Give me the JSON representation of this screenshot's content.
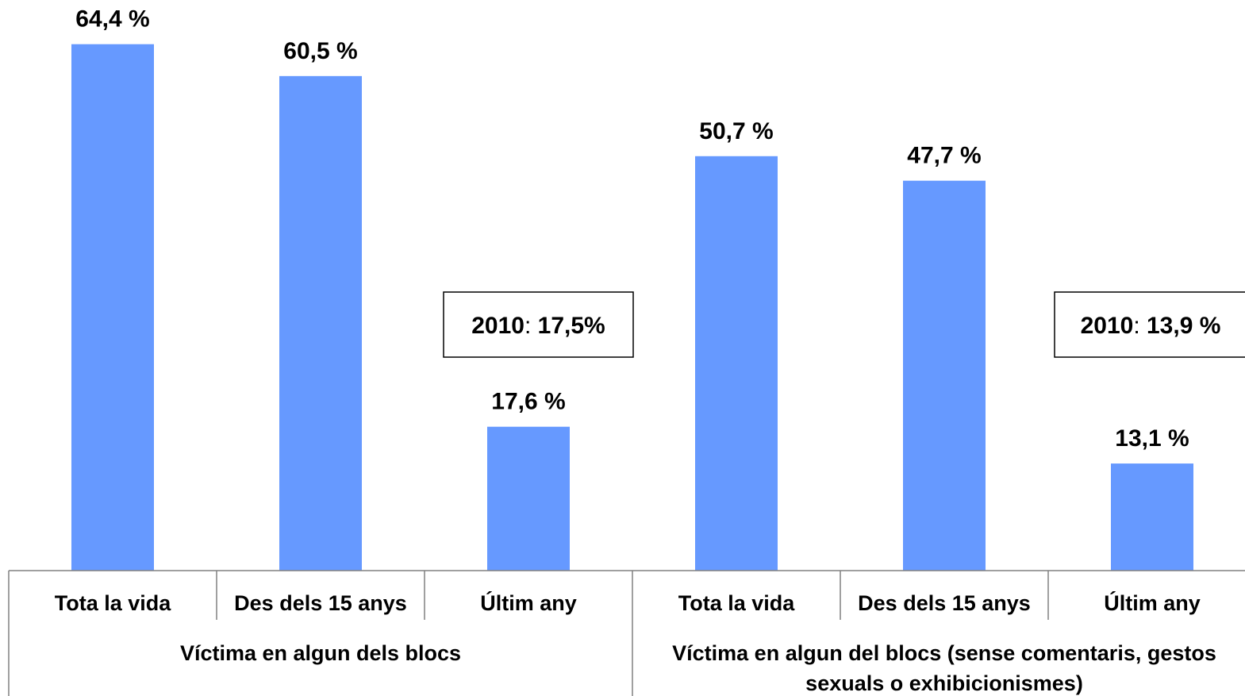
{
  "chart_data": {
    "type": "bar",
    "title": "",
    "xlabel": "",
    "ylabel": "",
    "ylim": [
      0,
      70
    ],
    "grid": false,
    "legend": "none",
    "bar_color": "#6699ff",
    "groups": [
      {
        "label": "Víctima en algun dels blocs",
        "label_lines": [
          "Víctima en algun dels blocs"
        ],
        "categories": [
          "Tota la vida",
          "Des dels 15 anys",
          "Últim any"
        ],
        "values": [
          64.4,
          60.5,
          17.6
        ],
        "value_labels": [
          "64,4 %",
          "60,5 %",
          "17,6 %"
        ],
        "note": {
          "year": "2010",
          "sep": ": ",
          "value": "17,5%"
        }
      },
      {
        "label": "Víctima en algun del blocs (sense comentaris, gestos sexuals o exhibicionismes)",
        "label_lines": [
          "Víctima en algun del blocs (sense comentaris, gestos",
          "sexuals o exhibicionismes)"
        ],
        "categories": [
          "Tota la vida",
          "Des dels 15 anys",
          "Últim any"
        ],
        "values": [
          50.7,
          47.7,
          13.1
        ],
        "value_labels": [
          "50,7 %",
          "47,7 %",
          "13,1 %"
        ],
        "note": {
          "year": "2010",
          "sep": ": ",
          "value": "13,9 %"
        }
      }
    ]
  }
}
